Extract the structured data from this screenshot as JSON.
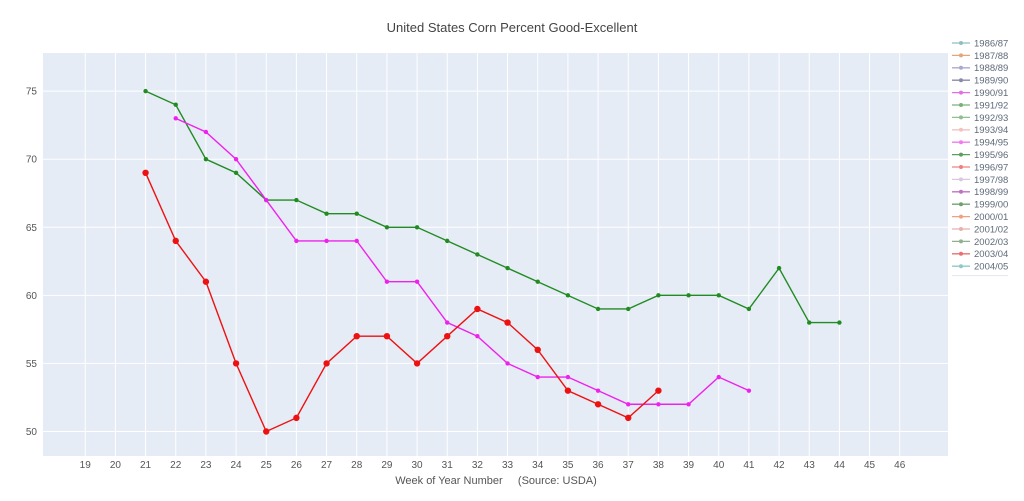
{
  "chart_data": {
    "type": "line",
    "title": "United States Corn Percent Good-Excellent",
    "xlabel": "Week of Year Number     (Source: USDA)",
    "ylabel": "",
    "xlim": [
      17.6,
      47.6
    ],
    "ylim": [
      48.2,
      77.8
    ],
    "x_ticks": [
      19,
      20,
      21,
      22,
      23,
      24,
      25,
      26,
      27,
      28,
      29,
      30,
      31,
      32,
      33,
      34,
      35,
      36,
      37,
      38,
      39,
      40,
      41,
      42,
      43,
      44,
      45,
      46
    ],
    "y_ticks": [
      50,
      55,
      60,
      65,
      70,
      75
    ],
    "grid": true,
    "legend_placement": "right",
    "series": [
      {
        "color": "#228b22",
        "marker_size": 2.2,
        "x": [
          21,
          22,
          23,
          24,
          25,
          26,
          27,
          28,
          29,
          30,
          31,
          32,
          33,
          34,
          35,
          36,
          37,
          38,
          39,
          40,
          41,
          42,
          43,
          44
        ],
        "values": [
          75,
          74,
          70,
          69,
          67,
          67,
          66,
          66,
          65,
          65,
          64,
          63,
          62,
          61,
          60,
          59,
          59,
          60,
          60,
          60,
          59,
          62,
          58,
          58
        ]
      },
      {
        "color": "#ee22ee",
        "marker_size": 2.2,
        "x": [
          22,
          23,
          24,
          25,
          26,
          27,
          28,
          29,
          30,
          31,
          32,
          33,
          34,
          35,
          36,
          37,
          38,
          39,
          40,
          41
        ],
        "values": [
          73,
          72,
          70,
          67,
          64,
          64,
          64,
          61,
          61,
          58,
          57,
          55,
          54,
          54,
          53,
          52,
          52,
          52,
          54,
          53
        ]
      },
      {
        "color": "#ee1111",
        "marker_size": 3.2,
        "x": [
          21,
          22,
          23,
          24,
          25,
          26,
          27,
          28,
          29,
          30,
          31,
          32,
          33,
          34,
          35,
          36,
          37,
          38
        ],
        "values": [
          69,
          64,
          61,
          55,
          50,
          51,
          55,
          57,
          57,
          55,
          57,
          59,
          58,
          56,
          53,
          52,
          51,
          53
        ]
      }
    ],
    "legend": [
      {
        "label": "1986/87",
        "color": "#8fbfbf"
      },
      {
        "label": "1987/88",
        "color": "#e3a57a"
      },
      {
        "label": "1988/89",
        "color": "#a9a9d0"
      },
      {
        "label": "1989/90",
        "color": "#8a8aa8"
      },
      {
        "label": "1990/91",
        "color": "#e070e0"
      },
      {
        "label": "1991/92",
        "color": "#7ab07a"
      },
      {
        "label": "1992/93",
        "color": "#8fc08f"
      },
      {
        "label": "1993/94",
        "color": "#f2c2c2"
      },
      {
        "label": "1994/95",
        "color": "#f07af0"
      },
      {
        "label": "1995/96",
        "color": "#5aa05a"
      },
      {
        "label": "1996/97",
        "color": "#f08080"
      },
      {
        "label": "1997/98",
        "color": "#d8c8e0"
      },
      {
        "label": "1998/99",
        "color": "#c070c0"
      },
      {
        "label": "1999/00",
        "color": "#70a070"
      },
      {
        "label": "2000/01",
        "color": "#f0a080"
      },
      {
        "label": "2001/02",
        "color": "#e8b0b0"
      },
      {
        "label": "2002/03",
        "color": "#90b090"
      },
      {
        "label": "2003/04",
        "color": "#e87070"
      },
      {
        "label": "2004/05",
        "color": "#90c8c8"
      }
    ]
  }
}
